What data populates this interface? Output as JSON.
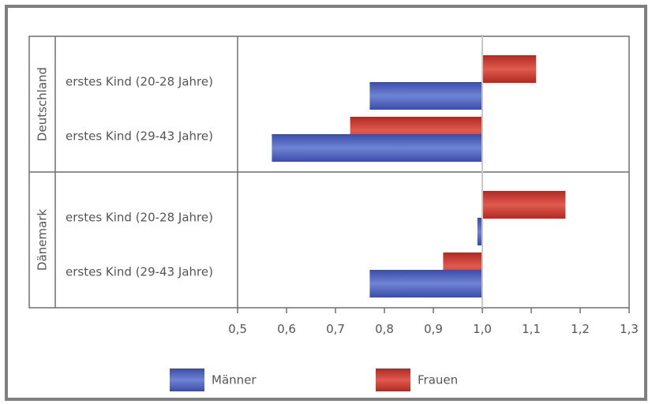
{
  "chart_data": {
    "type": "bar",
    "orientation": "horizontal",
    "groups": [
      {
        "name": "Deutschland",
        "categories": [
          "erstes Kind (20-28 Jahre)",
          "erstes Kind (29-43 Jahre)"
        ]
      },
      {
        "name": "Dänemark",
        "categories": [
          "erstes Kind (20-28 Jahre)",
          "erstes Kind (29-43 Jahre)"
        ]
      }
    ],
    "series": [
      {
        "name": "Männer",
        "color": "#4a5cb8",
        "values": [
          0.77,
          0.57,
          0.99,
          0.77
        ]
      },
      {
        "name": "Frauen",
        "color": "#c8342e",
        "values": [
          1.11,
          0.73,
          1.17,
          0.92
        ]
      }
    ],
    "baseline": 1.0,
    "xlim": [
      0.5,
      1.3
    ],
    "xticks": [
      "0,5",
      "0,6",
      "0,7",
      "0,8",
      "0,9",
      "1,0",
      "1,1",
      "1,2",
      "1,3"
    ],
    "legend_position": "bottom",
    "grid": false
  }
}
